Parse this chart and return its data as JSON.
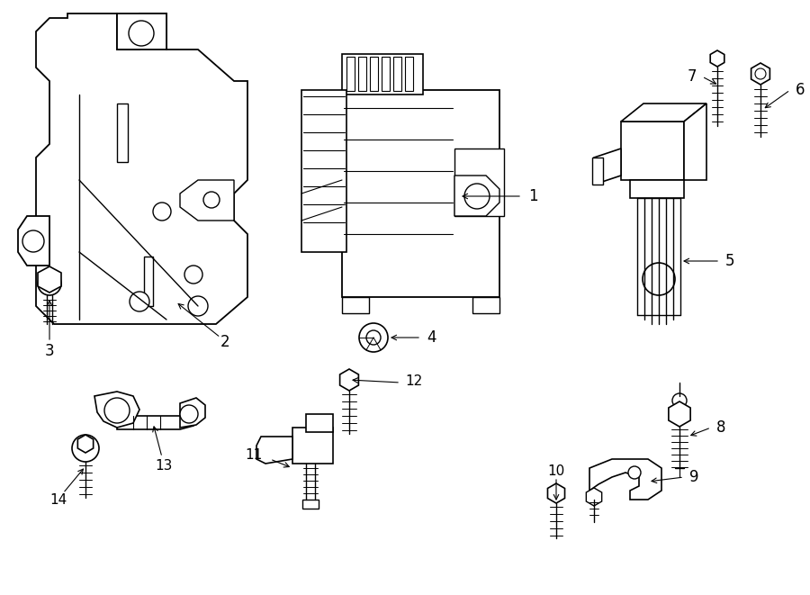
{
  "background_color": "#ffffff",
  "line_color": "#000000",
  "fig_width": 9.0,
  "fig_height": 6.61,
  "dpi": 100,
  "lw": 1.0
}
